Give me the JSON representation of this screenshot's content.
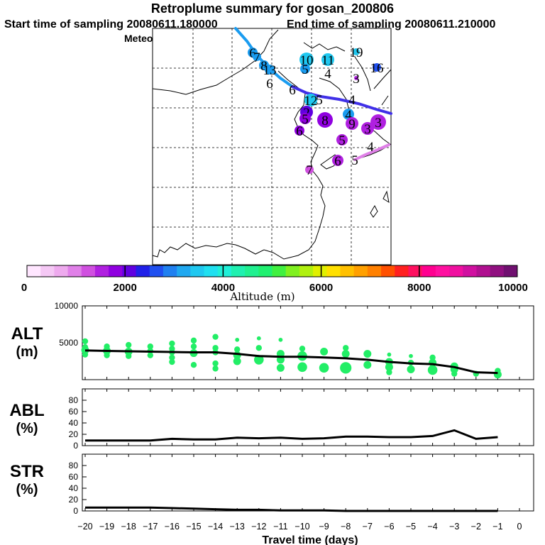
{
  "header": {
    "title": "Retroplume summary for gosan_200806",
    "start": "Start time of sampling 20080611.180000",
    "end": "End time of sampling 20080611.210000",
    "met": "Meteorological data used is ECMWF"
  },
  "colorbar": {
    "ticks": [
      "0",
      "2000",
      "4000",
      "6000",
      "8000",
      "10000"
    ],
    "label": "Altitude (m)",
    "colors": [
      "#ffe6ff",
      "#f5c8f5",
      "#eeaaee",
      "#e080e8",
      "#d050e0",
      "#b020e0",
      "#9000e0",
      "#6000e0",
      "#2020e8",
      "#2050f0",
      "#2080f0",
      "#20a8f0",
      "#20c8f0",
      "#20e0f0",
      "#20f0d8",
      "#20f0b0",
      "#20f090",
      "#20f070",
      "#40f040",
      "#80f020",
      "#b0f010",
      "#e0f000",
      "#ffe000",
      "#ffc000",
      "#ffa000",
      "#ff8000",
      "#ff5000",
      "#ff2020",
      "#ff1060",
      "#ff0090",
      "#ff10a0",
      "#f010a0",
      "#d010a0",
      "#b01090",
      "#901080",
      "#701070"
    ]
  },
  "map": {
    "markers": [
      {
        "text": "6",
        "color": "#1a9cf0"
      },
      {
        "text": "7",
        "color": "#1a9cf0"
      },
      {
        "text": "10",
        "color": "#20c8f0"
      },
      {
        "text": "11",
        "color": "#20c8f0"
      },
      {
        "text": "19",
        "color": "#20c8f0"
      },
      {
        "text": "8",
        "color": "#1a9cf0"
      },
      {
        "text": "13",
        "color": "#1a9cf0"
      },
      {
        "text": "5",
        "color": "#1a9cf0"
      },
      {
        "text": "4",
        "color": "#1a9cf0"
      },
      {
        "text": "3",
        "color": "#b020e0"
      },
      {
        "text": "16",
        "color": "#2050f0"
      },
      {
        "text": "6",
        "color": "#1a9cf0"
      },
      {
        "text": "6",
        "color": "#2020e8"
      },
      {
        "text": "12",
        "color": "#20c8f0"
      },
      {
        "text": "5",
        "color": "#2050f0"
      },
      {
        "text": "4",
        "color": "#2050f0"
      },
      {
        "text": "2",
        "color": "#6000e0"
      },
      {
        "text": "5",
        "color": "#9000e0"
      },
      {
        "text": "8",
        "color": "#9000e0"
      },
      {
        "text": "4",
        "color": "#1a9cf0"
      },
      {
        "text": "9",
        "color": "#b020e0"
      },
      {
        "text": "3",
        "color": "#b020e0"
      },
      {
        "text": "3",
        "color": "#b020e0"
      },
      {
        "text": "6",
        "color": "#9000e0"
      },
      {
        "text": "5",
        "color": "#b020e0"
      },
      {
        "text": "4",
        "color": "#d050e0"
      },
      {
        "text": "6",
        "color": "#b020e0"
      },
      {
        "text": "5",
        "color": "#e080e8"
      },
      {
        "text": "7",
        "color": "#d050e0"
      }
    ]
  },
  "panels": {
    "alt": {
      "name": "ALT",
      "unit": "(m)"
    },
    "abl": {
      "name": "ABL",
      "unit": "(%)"
    },
    "str": {
      "name": "STR",
      "unit": "(%)"
    },
    "xlabel": "Travel time (days)"
  },
  "chart_data": [
    {
      "type": "scatter",
      "title": "ALT (m)",
      "xlabel": "Travel time (days)",
      "ylabel": "ALT (m)",
      "xlim": [
        -20,
        0
      ],
      "ylim": [
        0,
        10000
      ],
      "yticks": [
        5000,
        10000
      ],
      "xticks": [
        -20,
        -19,
        -18,
        -17,
        -16,
        -15,
        -14,
        -13,
        -12,
        -11,
        -10,
        -9,
        -8,
        -7,
        -6,
        -5,
        -4,
        -3,
        -2,
        -1,
        0
      ],
      "mean_line": {
        "x": [
          -20,
          -19,
          -18,
          -17,
          -16,
          -15,
          -14,
          -13,
          -12,
          -11,
          -10,
          -9,
          -8,
          -7,
          -6,
          -5,
          -4,
          -3,
          -2,
          -1
        ],
        "y": [
          3950,
          3900,
          3850,
          3800,
          3750,
          3700,
          3700,
          3500,
          3200,
          3100,
          3100,
          3000,
          2900,
          2700,
          2400,
          2200,
          2100,
          1700,
          1000,
          900
        ]
      },
      "points": [
        {
          "x": -20,
          "y": 5200,
          "s": 2
        },
        {
          "x": -20,
          "y": 4400,
          "s": 2
        },
        {
          "x": -20,
          "y": 4000,
          "s": 3
        },
        {
          "x": -20,
          "y": 3400,
          "s": 2
        },
        {
          "x": -19,
          "y": 4500,
          "s": 2
        },
        {
          "x": -19,
          "y": 3900,
          "s": 3
        },
        {
          "x": -19,
          "y": 3300,
          "s": 2
        },
        {
          "x": -18,
          "y": 4700,
          "s": 2
        },
        {
          "x": -18,
          "y": 3800,
          "s": 3
        },
        {
          "x": -18,
          "y": 3200,
          "s": 2
        },
        {
          "x": -17,
          "y": 4500,
          "s": 2
        },
        {
          "x": -17,
          "y": 3900,
          "s": 2
        },
        {
          "x": -17,
          "y": 3300,
          "s": 2
        },
        {
          "x": -16,
          "y": 4900,
          "s": 2
        },
        {
          "x": -16,
          "y": 4200,
          "s": 2
        },
        {
          "x": -16,
          "y": 3700,
          "s": 2
        },
        {
          "x": -16,
          "y": 3000,
          "s": 2
        },
        {
          "x": -16,
          "y": 2400,
          "s": 2
        },
        {
          "x": -15,
          "y": 5300,
          "s": 2
        },
        {
          "x": -15,
          "y": 4500,
          "s": 2
        },
        {
          "x": -15,
          "y": 3600,
          "s": 3
        },
        {
          "x": -15,
          "y": 2000,
          "s": 2
        },
        {
          "x": -14,
          "y": 5800,
          "s": 2
        },
        {
          "x": -14,
          "y": 4300,
          "s": 2
        },
        {
          "x": -14,
          "y": 3700,
          "s": 2
        },
        {
          "x": -14,
          "y": 2200,
          "s": 2
        },
        {
          "x": -14,
          "y": 1500,
          "s": 2
        },
        {
          "x": -13,
          "y": 5400,
          "s": 1
        },
        {
          "x": -13,
          "y": 4100,
          "s": 2
        },
        {
          "x": -13,
          "y": 3300,
          "s": 3
        },
        {
          "x": -13,
          "y": 2500,
          "s": 3
        },
        {
          "x": -12,
          "y": 5600,
          "s": 1
        },
        {
          "x": -12,
          "y": 4300,
          "s": 2
        },
        {
          "x": -12,
          "y": 2700,
          "s": 4
        },
        {
          "x": -11,
          "y": 5400,
          "s": 1
        },
        {
          "x": -11,
          "y": 3500,
          "s": 3
        },
        {
          "x": -11,
          "y": 2700,
          "s": 3
        },
        {
          "x": -11,
          "y": 1600,
          "s": 3
        },
        {
          "x": -10,
          "y": 4200,
          "s": 2
        },
        {
          "x": -10,
          "y": 3200,
          "s": 4
        },
        {
          "x": -10,
          "y": 1700,
          "s": 4
        },
        {
          "x": -9,
          "y": 3800,
          "s": 3
        },
        {
          "x": -9,
          "y": 1600,
          "s": 4
        },
        {
          "x": -8,
          "y": 4300,
          "s": 2
        },
        {
          "x": -8,
          "y": 3500,
          "s": 3
        },
        {
          "x": -8,
          "y": 1600,
          "s": 5
        },
        {
          "x": -7,
          "y": 3500,
          "s": 3
        },
        {
          "x": -7,
          "y": 2000,
          "s": 3
        },
        {
          "x": -6,
          "y": 3400,
          "s": 1
        },
        {
          "x": -6,
          "y": 2400,
          "s": 3
        },
        {
          "x": -6,
          "y": 1700,
          "s": 3
        },
        {
          "x": -6,
          "y": 1000,
          "s": 2
        },
        {
          "x": -5,
          "y": 3200,
          "s": 1
        },
        {
          "x": -5,
          "y": 2300,
          "s": 2
        },
        {
          "x": -5,
          "y": 1400,
          "s": 3
        },
        {
          "x": -4,
          "y": 3000,
          "s": 2
        },
        {
          "x": -4,
          "y": 2300,
          "s": 3
        },
        {
          "x": -4,
          "y": 1300,
          "s": 4
        },
        {
          "x": -3,
          "y": 1800,
          "s": 3
        },
        {
          "x": -3,
          "y": 1400,
          "s": 3
        },
        {
          "x": -3,
          "y": 800,
          "s": 2
        },
        {
          "x": -2,
          "y": 800,
          "s": 2
        },
        {
          "x": -1,
          "y": 1200,
          "s": 2
        },
        {
          "x": -1,
          "y": 700,
          "s": 3
        }
      ]
    },
    {
      "type": "line",
      "title": "ABL (%)",
      "xlabel": "Travel time (days)",
      "ylabel": "ABL (%)",
      "xlim": [
        -20,
        0
      ],
      "ylim": [
        0,
        100
      ],
      "yticks": [
        0,
        20,
        40,
        60,
        80
      ],
      "x": [
        -20,
        -19,
        -18,
        -17,
        -16,
        -15,
        -14,
        -13,
        -12,
        -11,
        -10,
        -9,
        -8,
        -7,
        -6,
        -5,
        -4,
        -3,
        -2,
        -1
      ],
      "values": [
        9,
        9,
        9,
        9,
        12,
        11,
        11,
        14,
        13,
        14,
        12,
        13,
        16,
        16,
        15,
        15,
        17,
        27,
        12,
        15
      ]
    },
    {
      "type": "line",
      "title": "STR (%)",
      "xlabel": "Travel time (days)",
      "ylabel": "STR (%)",
      "xlim": [
        -20,
        0
      ],
      "ylim": [
        0,
        100
      ],
      "yticks": [
        0,
        20,
        40,
        60,
        80
      ],
      "x": [
        -20,
        -19,
        -18,
        -17,
        -16,
        -15,
        -14,
        -13,
        -12,
        -11,
        -10,
        -9,
        -8,
        -7,
        -6,
        -5,
        -4,
        -3,
        -2,
        -1
      ],
      "values": [
        6,
        6,
        6,
        6,
        5,
        4,
        3,
        2,
        2,
        1,
        1,
        1,
        0,
        0,
        0,
        0,
        0,
        0,
        0,
        0
      ]
    }
  ]
}
